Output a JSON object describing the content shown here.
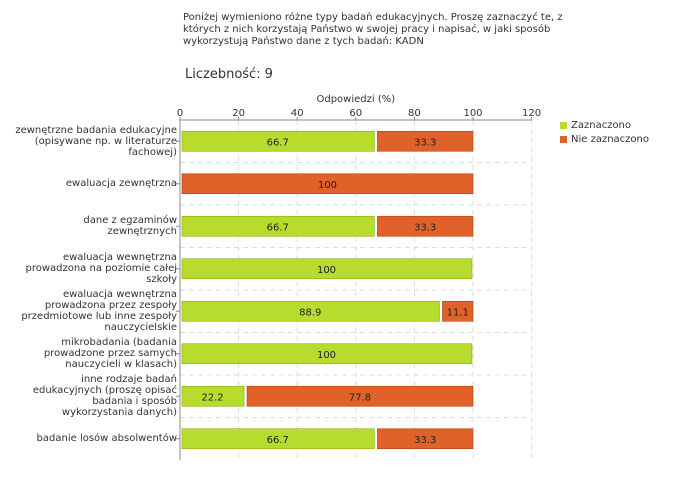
{
  "header": {
    "question": "Poniżej wymieniono różne typy badań edukacyjnych. Proszę zaznaczyć te, z\nktórych z nich korzystają Państwo w swojej pracy i napisać, w jaki sposób\nwykorzystują Państwo dane z tych badań:  KADN",
    "count_label": "Liczebność:",
    "count_value": "9"
  },
  "colors": {
    "zaznaczono": "#b8dc2e",
    "nie_zaznaczono": "#e0622a",
    "grid": "#dddddd",
    "axis": "#888888"
  },
  "chart_data": {
    "type": "bar",
    "orientation": "horizontal",
    "stacked": true,
    "title": "Odpowiedzi (%)",
    "xlim": [
      0,
      120
    ],
    "xticks": [
      0,
      20,
      40,
      60,
      80,
      100,
      120
    ],
    "grid": true,
    "legend_position": "right",
    "categories": [
      "zewnętrzne badania edukacyjne\n(opisywane np. w literaturze\nfachowej)",
      "ewaluacja zewnętrzna",
      "dane z egzaminów\nzewnętrznych",
      "ewaluacja wewnętrzna\nprowadzona na poziomie całej\nszkoły",
      "ewaluacja wewnętrzna\nprowadzona przez zespoły\nprzedmiotowe lub inne zespoły\nnauczycielskie",
      "mikrobadania (badania\nprowadzone przez samych\nnauczycieli w klasach)",
      "inne rodzaje badań\nedukacyjnych (proszę opisać\nbadania i sposób\nwykorzystania danych)",
      "badanie losów absolwentów"
    ],
    "series": [
      {
        "name": "Zaznaczono",
        "values": [
          66.7,
          0,
          66.7,
          100,
          88.9,
          100,
          22.2,
          66.7
        ]
      },
      {
        "name": "Nie zaznaczono",
        "values": [
          33.3,
          100,
          33.3,
          0,
          11.1,
          0,
          77.8,
          33.3
        ]
      }
    ]
  }
}
